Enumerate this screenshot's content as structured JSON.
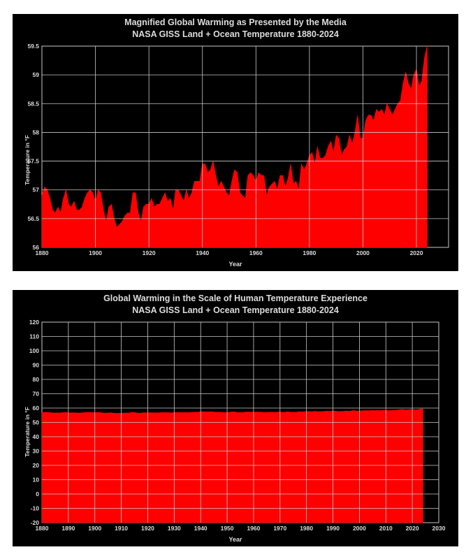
{
  "chart_data": [
    {
      "type": "area",
      "title": "Magnified Global Warming as Presented by the Media",
      "subtitle": "NASA GISS Land + Ocean Temperature 1880-2024",
      "xlabel": "Year",
      "ylabel": "Temperature in °F",
      "xlim": [
        1880,
        2032
      ],
      "ylim": [
        56,
        59.5
      ],
      "xticks": [
        1880,
        1900,
        1920,
        1940,
        1960,
        1980,
        2000,
        2020
      ],
      "yticks": [
        56,
        56.5,
        57,
        57.5,
        58,
        58.5,
        59,
        59.5
      ],
      "grid": true,
      "series_color": "#ff0000",
      "x": [
        1880,
        1881,
        1882,
        1883,
        1884,
        1885,
        1886,
        1887,
        1888,
        1889,
        1890,
        1891,
        1892,
        1893,
        1894,
        1895,
        1896,
        1897,
        1898,
        1899,
        1900,
        1901,
        1902,
        1903,
        1904,
        1905,
        1906,
        1907,
        1908,
        1909,
        1910,
        1911,
        1912,
        1913,
        1914,
        1915,
        1916,
        1917,
        1918,
        1919,
        1920,
        1921,
        1922,
        1923,
        1924,
        1925,
        1926,
        1927,
        1928,
        1929,
        1930,
        1931,
        1932,
        1933,
        1934,
        1935,
        1936,
        1937,
        1938,
        1939,
        1940,
        1941,
        1942,
        1943,
        1944,
        1945,
        1946,
        1947,
        1948,
        1949,
        1950,
        1951,
        1952,
        1953,
        1954,
        1955,
        1956,
        1957,
        1958,
        1959,
        1960,
        1961,
        1962,
        1963,
        1964,
        1965,
        1966,
        1967,
        1968,
        1969,
        1970,
        1971,
        1972,
        1973,
        1974,
        1975,
        1976,
        1977,
        1978,
        1979,
        1980,
        1981,
        1982,
        1983,
        1984,
        1985,
        1986,
        1987,
        1988,
        1989,
        1990,
        1991,
        1992,
        1993,
        1994,
        1995,
        1996,
        1997,
        1998,
        1999,
        2000,
        2001,
        2002,
        2003,
        2004,
        2005,
        2006,
        2007,
        2008,
        2009,
        2010,
        2011,
        2012,
        2013,
        2014,
        2015,
        2016,
        2017,
        2018,
        2019,
        2020,
        2021,
        2022,
        2023,
        2024
      ],
      "values": [
        56.9,
        57.05,
        57.0,
        56.85,
        56.65,
        56.6,
        56.7,
        56.6,
        56.85,
        57.0,
        56.75,
        56.7,
        56.8,
        56.65,
        56.65,
        56.7,
        56.85,
        56.95,
        57.0,
        56.95,
        56.8,
        57.0,
        56.95,
        56.65,
        56.45,
        56.7,
        56.75,
        56.5,
        56.35,
        56.4,
        56.45,
        56.55,
        56.6,
        56.6,
        56.95,
        56.95,
        56.6,
        56.45,
        56.7,
        56.75,
        56.75,
        56.85,
        56.7,
        56.75,
        56.75,
        56.85,
        56.95,
        56.8,
        56.85,
        56.65,
        57.0,
        57.0,
        56.9,
        56.8,
        57.0,
        56.85,
        56.95,
        57.15,
        57.15,
        57.15,
        57.45,
        57.45,
        57.3,
        57.35,
        57.5,
        57.25,
        57.05,
        57.15,
        57.05,
        56.95,
        56.9,
        57.15,
        57.35,
        57.3,
        56.95,
        56.9,
        56.85,
        57.25,
        57.3,
        57.25,
        57.15,
        57.3,
        57.25,
        57.25,
        56.9,
        57.05,
        57.1,
        57.15,
        57.0,
        57.25,
        57.25,
        57.05,
        57.2,
        57.45,
        57.1,
        57.15,
        57.0,
        57.45,
        57.35,
        57.45,
        57.6,
        57.65,
        57.45,
        57.75,
        57.55,
        57.55,
        57.6,
        57.75,
        57.85,
        57.65,
        57.95,
        57.9,
        57.6,
        57.7,
        57.75,
        57.95,
        57.8,
        58.0,
        58.3,
        57.9,
        57.9,
        58.2,
        58.3,
        58.3,
        58.2,
        58.4,
        58.35,
        58.4,
        58.3,
        58.5,
        58.4,
        58.3,
        58.4,
        58.5,
        58.55,
        58.85,
        59.05,
        58.85,
        58.75,
        59.0,
        59.1,
        58.8,
        58.9,
        59.3,
        59.5
      ]
    },
    {
      "type": "area",
      "title": "Global Warming in the Scale of Human Temperature Experience",
      "subtitle": "NASA GISS Land + Ocean Temperature 1880-2024",
      "xlabel": "Year",
      "ylabel": "Temperature in °F",
      "xlim": [
        1880,
        2030
      ],
      "ylim": [
        -20,
        120
      ],
      "xticks": [
        1880,
        1890,
        1900,
        1910,
        1920,
        1930,
        1940,
        1950,
        1960,
        1970,
        1980,
        1990,
        2000,
        2010,
        2020,
        2030
      ],
      "yticks": [
        -20,
        -10,
        0,
        10,
        20,
        30,
        40,
        50,
        60,
        70,
        80,
        90,
        100,
        110,
        120
      ],
      "grid": true,
      "series_color": "#ff0000",
      "x_from": "chart_data.0.x",
      "values_from": "chart_data.0.values"
    }
  ]
}
